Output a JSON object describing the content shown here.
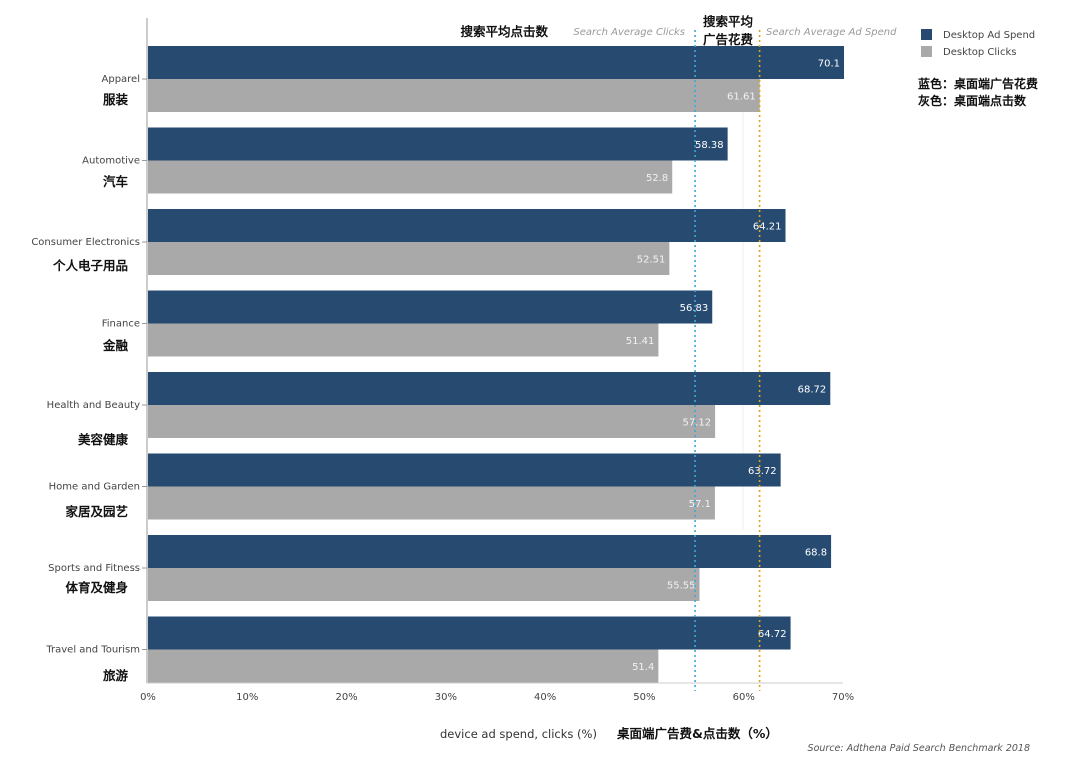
{
  "chart_data": {
    "type": "bar",
    "orientation": "horizontal",
    "categories": [
      {
        "en": "Apparel",
        "zh": "服装"
      },
      {
        "en": "Automotive",
        "zh": "汽车"
      },
      {
        "en": "Consumer Electronics",
        "zh": "个人电子用品"
      },
      {
        "en": "Finance",
        "zh": "金融"
      },
      {
        "en": "Health and Beauty",
        "zh": "美容健康"
      },
      {
        "en": "Home and Garden",
        "zh": "家居及园艺"
      },
      {
        "en": "Sports and Fitness",
        "zh": "体育及健身"
      },
      {
        "en": "Travel and Tourism",
        "zh": "旅游"
      }
    ],
    "series": [
      {
        "name": "Desktop Ad Spend",
        "color": "#264a70",
        "values": [
          70.1,
          58.38,
          64.21,
          56.83,
          68.72,
          63.72,
          68.8,
          64.72
        ],
        "labels": [
          "70.1",
          "58.38",
          "64.21",
          "56.83",
          "68.72",
          "63.72",
          "68.8",
          "64.72"
        ]
      },
      {
        "name": "Desktop Clicks",
        "color": "#a9a9a9",
        "values": [
          61.61,
          52.8,
          52.51,
          51.41,
          57.12,
          57.1,
          55.55,
          51.4
        ],
        "labels": [
          "61.61",
          "52.8",
          "52.51",
          "51.41",
          "57.12",
          "57.1",
          "55.55",
          "51.4"
        ]
      }
    ],
    "xlim": [
      0,
      70
    ],
    "xticks": [
      "0%",
      "10%",
      "20%",
      "30%",
      "40%",
      "50%",
      "60%",
      "70%"
    ],
    "xlabel": "device ad spend, clicks (%)",
    "xlabel_zh": "桌面端广告费&点击数（%）",
    "reference_lines": [
      {
        "value": 55.1,
        "label": "Search Average Clicks",
        "label_zh": "搜索平均点击数",
        "color": "#3aa8d8"
      },
      {
        "value": 61.6,
        "label": "Search Average Ad Spend",
        "label_zh": [
          "搜索平均",
          "广告花费"
        ],
        "color": "#e0a020"
      }
    ],
    "legend_position": "top-right",
    "legend_note": [
      "蓝色：桌面端广告花费",
      "灰色：桌面端点击数"
    ],
    "source": "Source: Adthena Paid Search Benchmark 2018"
  }
}
